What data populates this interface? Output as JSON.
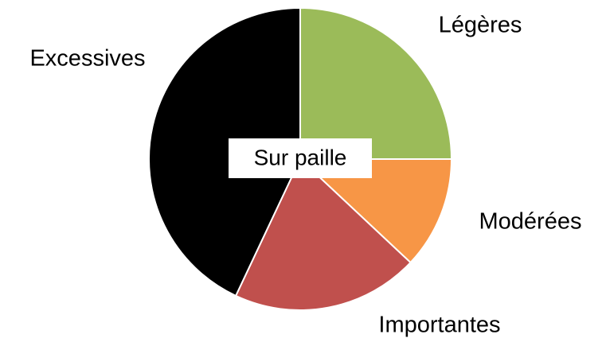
{
  "chart_data": {
    "type": "pie",
    "annotation": "Sur paille",
    "categories": [
      "Légères",
      "Modérées",
      "Importantes",
      "Excessives"
    ],
    "values": [
      25,
      12,
      20,
      43
    ],
    "colors": [
      "#9bbb59",
      "#f79646",
      "#c0504d",
      "#000000"
    ]
  }
}
